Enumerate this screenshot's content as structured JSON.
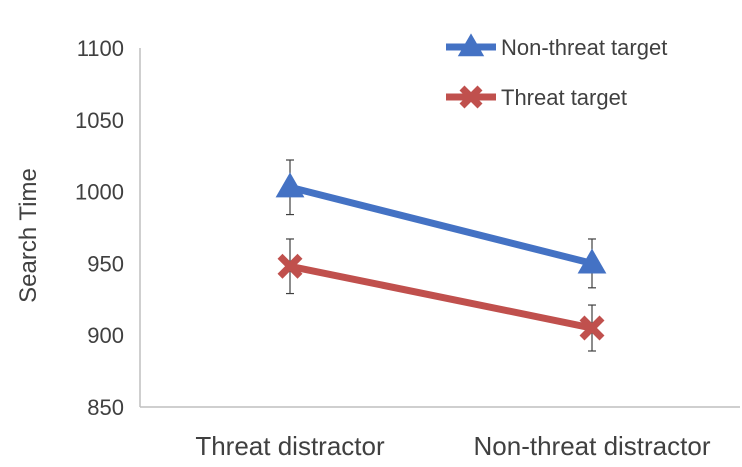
{
  "chart_data": {
    "type": "line",
    "categories": [
      "Threat distractor",
      "Non-threat distractor"
    ],
    "ylabel": "Search Time",
    "xlabel": "",
    "ylim": [
      850,
      1100
    ],
    "yticks": [
      850,
      900,
      950,
      1000,
      1050,
      1100
    ],
    "grid": false,
    "legend_position": "top-right",
    "series": [
      {
        "name": "Non-threat target",
        "values": [
          1003,
          950
        ],
        "errors": [
          19,
          17
        ],
        "color": "#4472c4",
        "marker": "triangle"
      },
      {
        "name": "Threat target",
        "values": [
          948,
          905
        ],
        "errors": [
          19,
          16
        ],
        "color": "#c0504d",
        "marker": "x"
      }
    ]
  }
}
